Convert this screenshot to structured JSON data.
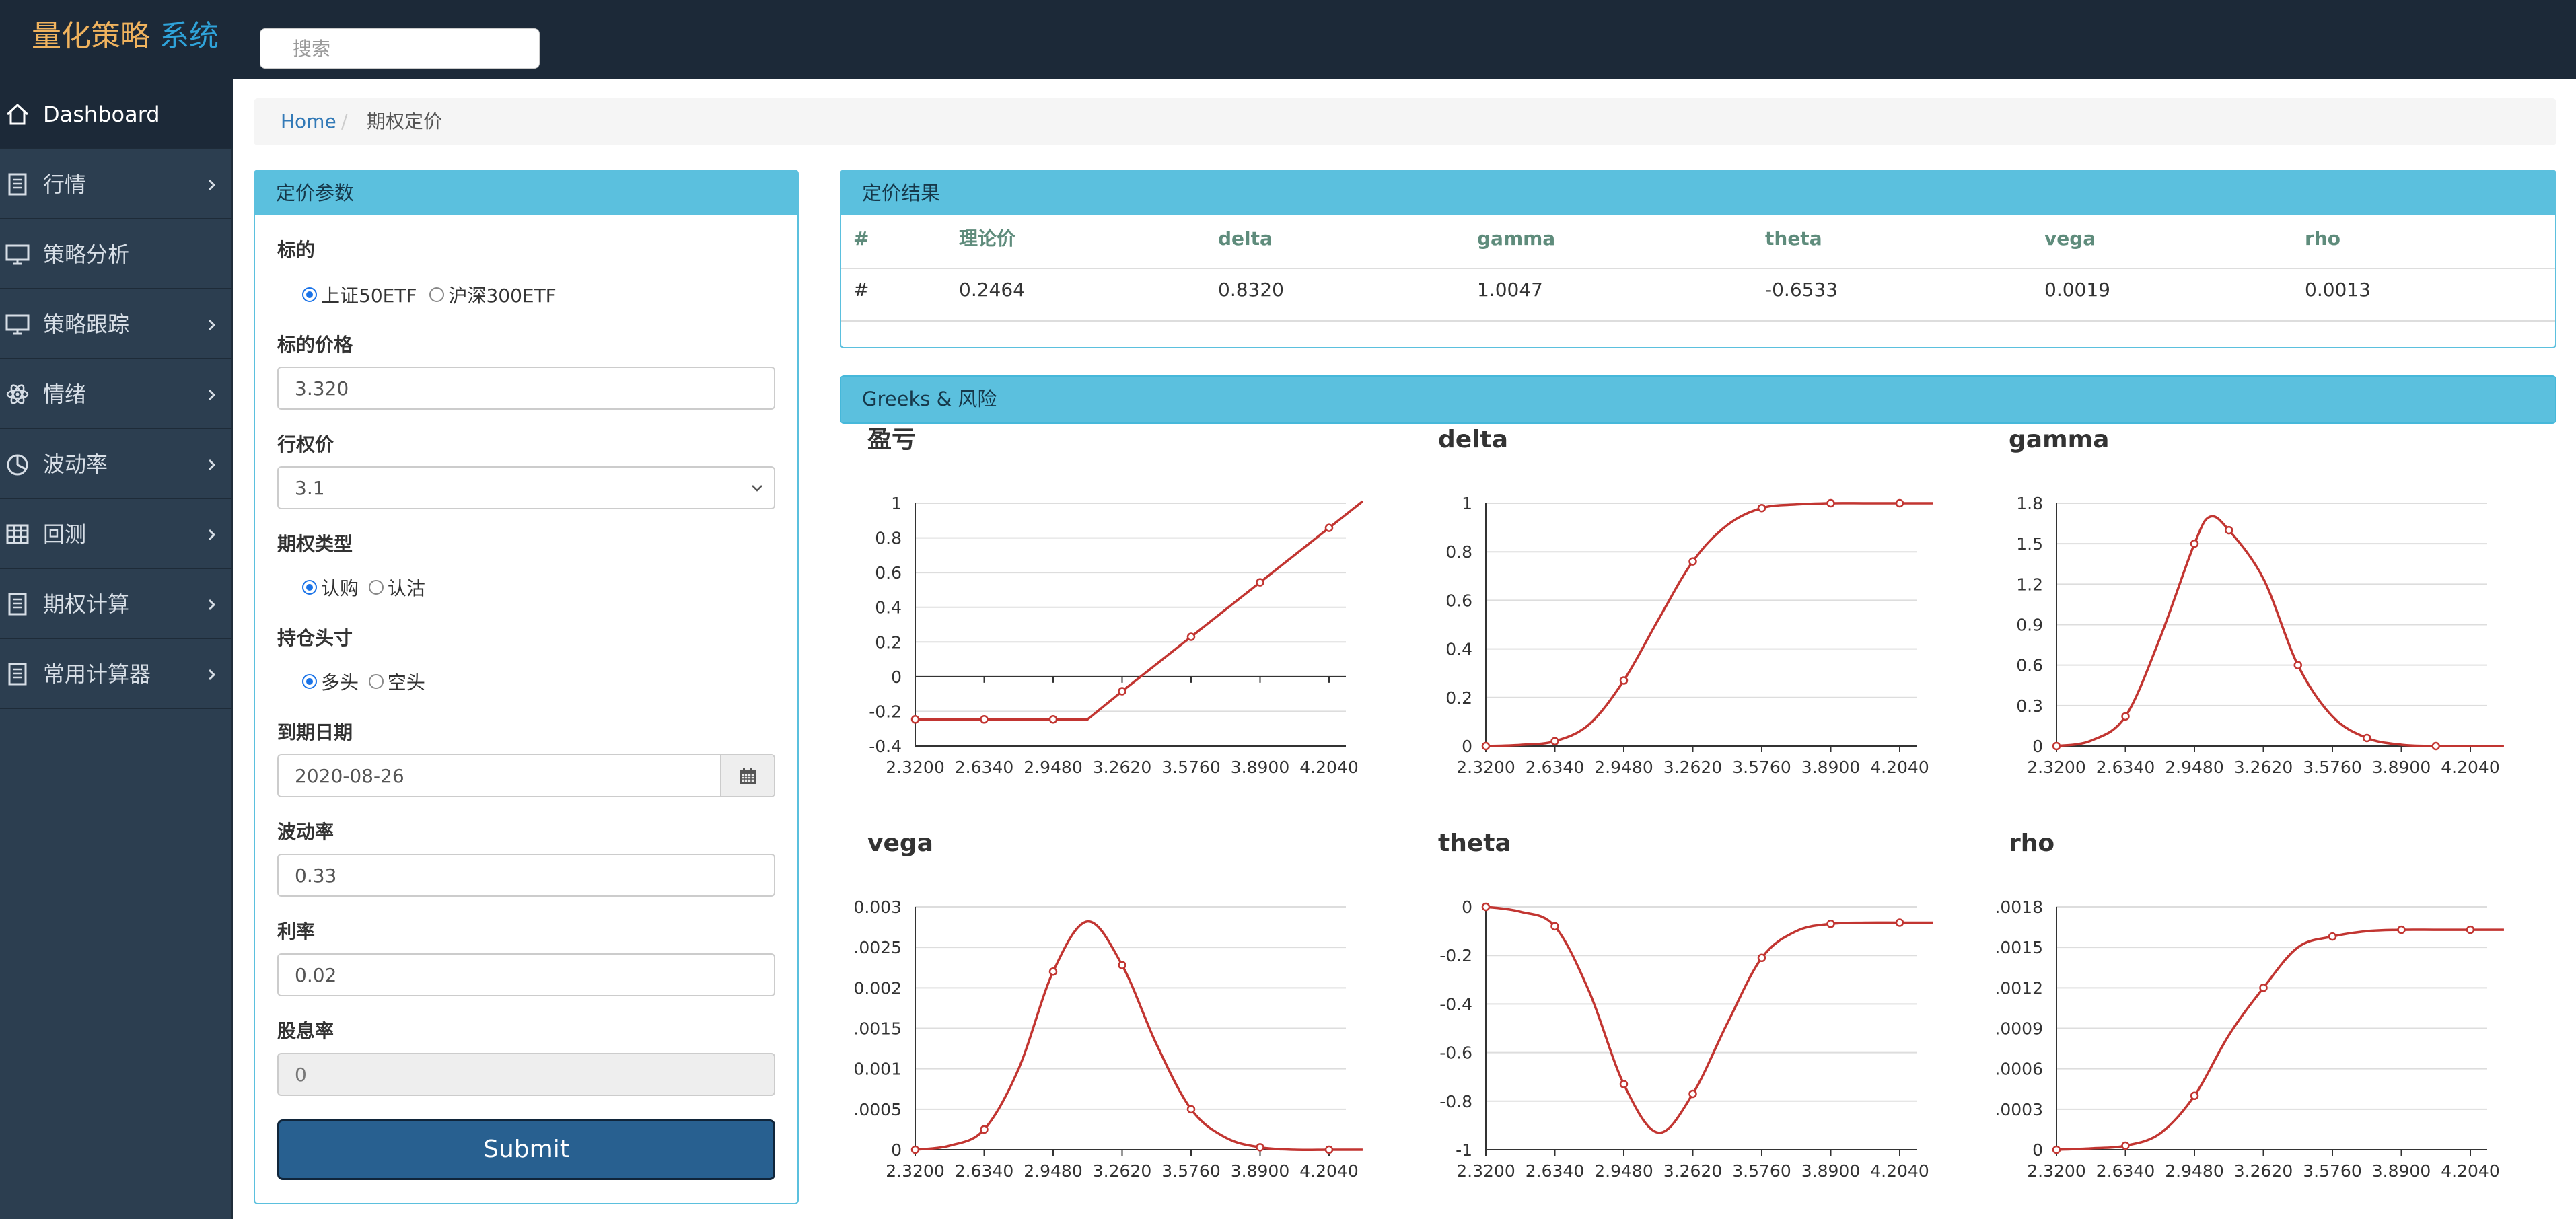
{
  "app": {
    "title_part1": "量化策略",
    "title_part2": "系统"
  },
  "search": {
    "placeholder": "搜索"
  },
  "sidebar": {
    "items": [
      {
        "label": "Dashboard",
        "icon": "home-icon",
        "active": true,
        "has_chevron": false
      },
      {
        "label": "行情",
        "icon": "document-icon",
        "has_chevron": true
      },
      {
        "label": "策略分析",
        "icon": "monitor-icon",
        "has_chevron": true
      },
      {
        "label": "策略跟踪",
        "icon": "monitor-icon",
        "has_chevron": true
      },
      {
        "label": "情绪",
        "icon": "atom-icon",
        "has_chevron": true
      },
      {
        "label": "波动率",
        "icon": "pie-chart-icon",
        "has_chevron": true
      },
      {
        "label": "回测",
        "icon": "table-icon",
        "has_chevron": true
      },
      {
        "label": "期权计算",
        "icon": "document-icon",
        "has_chevron": true
      },
      {
        "label": "常用计算器",
        "icon": "document-icon",
        "has_chevron": true
      }
    ]
  },
  "breadcrumb": {
    "home": "Home",
    "separator": "/",
    "current": "期权定价"
  },
  "form": {
    "panel_title": "定价参数",
    "underlying": {
      "label": "标的",
      "options": [
        "上证50ETF",
        "沪深300ETF"
      ],
      "selected": 0
    },
    "price": {
      "label": "标的价格",
      "value": "3.320"
    },
    "strike": {
      "label": "行权价",
      "value": "3.1"
    },
    "option_type": {
      "label": "期权类型",
      "options": [
        "认购",
        "认沽"
      ],
      "selected": 0
    },
    "position": {
      "label": "持仓头寸",
      "options": [
        "多头",
        "空头"
      ],
      "selected": 0
    },
    "expiry": {
      "label": "到期日期",
      "value": "2020-08-26"
    },
    "volatility": {
      "label": "波动率",
      "value": "0.33"
    },
    "rate": {
      "label": "利率",
      "value": "0.02"
    },
    "dividend": {
      "label": "股息率",
      "value": "0"
    },
    "submit_label": "Submit"
  },
  "results": {
    "panel_title": "定价结果",
    "headers": [
      "#",
      "理论价",
      "delta",
      "gamma",
      "theta",
      "vega",
      "rho"
    ],
    "row": [
      "#",
      "0.2464",
      "0.8320",
      "1.0047",
      "-0.6533",
      "0.0019",
      "0.0013"
    ]
  },
  "greeks_panel": {
    "title": "Greeks & 风险"
  },
  "colors": {
    "line": "#c23531",
    "header_bar": "#5bc0de",
    "sidebar": "#2c3e50",
    "topbar": "#1c2938",
    "submit": "#286090"
  },
  "chart_data": [
    {
      "type": "line",
      "title": "盈亏",
      "x_ticks": [
        "2.3200",
        "2.6340",
        "2.9480",
        "3.2620",
        "3.5760",
        "3.8900",
        "4.2040"
      ],
      "y_ticks": [
        "-0.4",
        "-0.2",
        "0",
        "0.2",
        "0.4",
        "0.6",
        "0.8",
        "1"
      ],
      "ylim": [
        -0.4,
        1
      ],
      "x": [
        2.32,
        2.477,
        2.634,
        2.791,
        2.948,
        3.105,
        3.262,
        3.419,
        3.576,
        3.733,
        3.89,
        4.047,
        4.204,
        4.357
      ],
      "y": [
        -0.246,
        -0.246,
        -0.246,
        -0.246,
        -0.246,
        -0.246,
        -0.084,
        0.073,
        0.23,
        0.387,
        0.544,
        0.701,
        0.858,
        1.011
      ]
    },
    {
      "type": "line",
      "title": "delta",
      "x_ticks": [
        "2.3200",
        "2.6340",
        "2.9480",
        "3.2620",
        "3.5760",
        "3.8900",
        "4.2040"
      ],
      "y_ticks": [
        "0",
        "0.2",
        "0.4",
        "0.6",
        "0.8",
        "1"
      ],
      "ylim": [
        0,
        1
      ],
      "x": [
        2.32,
        2.477,
        2.634,
        2.791,
        2.948,
        3.105,
        3.262,
        3.419,
        3.576,
        3.733,
        3.89,
        4.047,
        4.204,
        4.357
      ],
      "y": [
        0.0,
        0.005,
        0.02,
        0.09,
        0.27,
        0.52,
        0.76,
        0.91,
        0.98,
        0.995,
        1.0,
        1.0,
        1.0,
        1.0
      ]
    },
    {
      "type": "line",
      "title": "gamma",
      "x_ticks": [
        "2.3200",
        "2.6340",
        "2.9480",
        "3.2620",
        "3.5760",
        "3.8900",
        "4.2040"
      ],
      "y_ticks": [
        "0",
        "0.3",
        "0.6",
        "0.9",
        "1.2",
        "1.5",
        "1.8"
      ],
      "ylim": [
        0,
        1.8
      ],
      "x": [
        2.32,
        2.477,
        2.634,
        2.791,
        2.948,
        3.019,
        3.105,
        3.262,
        3.419,
        3.576,
        3.733,
        3.89,
        4.047,
        4.204,
        4.357
      ],
      "y": [
        0.0,
        0.04,
        0.22,
        0.8,
        1.5,
        1.7,
        1.6,
        1.24,
        0.6,
        0.22,
        0.06,
        0.01,
        0.0,
        0.0,
        0.0
      ]
    },
    {
      "type": "line",
      "title": "vega",
      "x_ticks": [
        "2.3200",
        "2.6340",
        "2.9480",
        "3.2620",
        "3.5760",
        "3.8900",
        "4.2040"
      ],
      "y_ticks": [
        "0",
        ".0005",
        "0.001",
        ".0015",
        "0.002",
        ".0025",
        "0.003"
      ],
      "ylim": [
        0,
        0.003
      ],
      "x": [
        2.32,
        2.477,
        2.634,
        2.791,
        2.948,
        3.105,
        3.262,
        3.419,
        3.576,
        3.733,
        3.89,
        4.047,
        4.204,
        4.357
      ],
      "y": [
        0.0,
        5e-05,
        0.00025,
        0.001,
        0.0022,
        0.00282,
        0.00228,
        0.0013,
        0.0005,
        0.00015,
        3e-05,
        0.0,
        0.0,
        0.0
      ]
    },
    {
      "type": "line",
      "title": "theta",
      "x_ticks": [
        "2.3200",
        "2.6340",
        "2.9480",
        "3.2620",
        "3.5760",
        "3.8900",
        "4.2040"
      ],
      "y_ticks": [
        "-1",
        "-0.8",
        "-0.6",
        "-0.4",
        "-0.2",
        "0"
      ],
      "ylim": [
        -1,
        0
      ],
      "x": [
        2.32,
        2.477,
        2.634,
        2.791,
        2.948,
        3.105,
        3.262,
        3.419,
        3.576,
        3.733,
        3.89,
        4.047,
        4.204,
        4.357
      ],
      "y": [
        0.0,
        -0.02,
        -0.08,
        -0.35,
        -0.73,
        -0.93,
        -0.77,
        -0.48,
        -0.21,
        -0.1,
        -0.07,
        -0.065,
        -0.065,
        -0.065
      ]
    },
    {
      "type": "line",
      "title": "rho",
      "x_ticks": [
        "2.3200",
        "2.6340",
        "2.9480",
        "3.2620",
        "3.5760",
        "3.8900",
        "4.2040"
      ],
      "y_ticks": [
        "0",
        ".0003",
        ".0006",
        ".0009",
        ".0012",
        ".0015",
        ".0018"
      ],
      "ylim": [
        0,
        0.0018
      ],
      "x": [
        2.32,
        2.477,
        2.634,
        2.791,
        2.948,
        3.105,
        3.262,
        3.419,
        3.576,
        3.733,
        3.89,
        4.047,
        4.204,
        4.357
      ],
      "y": [
        0.0,
        1e-05,
        3e-05,
        0.00012,
        0.0004,
        0.00085,
        0.0012,
        0.0015,
        0.00158,
        0.00162,
        0.00163,
        0.00163,
        0.00163,
        0.00163
      ]
    }
  ]
}
